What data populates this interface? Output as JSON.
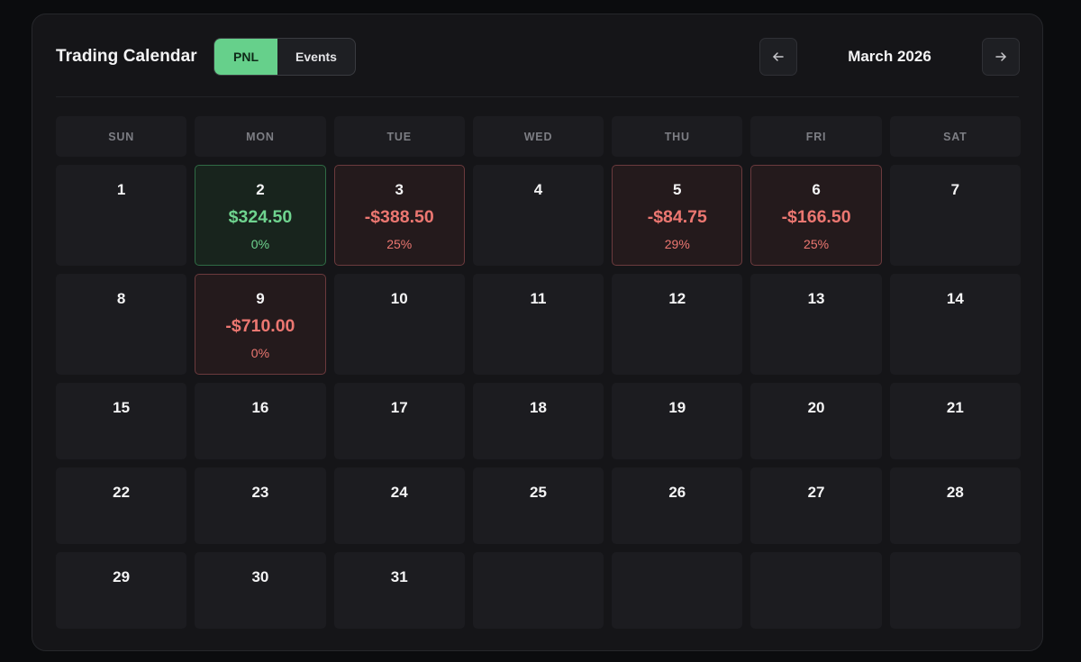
{
  "header": {
    "title": "Trading Calendar",
    "toggle": {
      "pnl_label": "PNL",
      "events_label": "Events",
      "selected": "PNL"
    },
    "month_label": "March 2026",
    "prev_icon": "arrow-left-icon",
    "next_icon": "arrow-right-icon"
  },
  "weekdays": [
    "SUN",
    "MON",
    "TUE",
    "WED",
    "THU",
    "FRI",
    "SAT"
  ],
  "colors": {
    "profit": "#6fd48f",
    "loss": "#ec7771",
    "toggle_active": "#66d08b"
  },
  "days": [
    {
      "day": "1"
    },
    {
      "day": "2",
      "pnl": "$324.50",
      "pct": "0%",
      "status": "profit"
    },
    {
      "day": "3",
      "pnl": "-$388.50",
      "pct": "25%",
      "status": "loss"
    },
    {
      "day": "4"
    },
    {
      "day": "5",
      "pnl": "-$84.75",
      "pct": "29%",
      "status": "loss"
    },
    {
      "day": "6",
      "pnl": "-$166.50",
      "pct": "25%",
      "status": "loss"
    },
    {
      "day": "7"
    },
    {
      "day": "8"
    },
    {
      "day": "9",
      "pnl": "-$710.00",
      "pct": "0%",
      "status": "loss"
    },
    {
      "day": "10"
    },
    {
      "day": "11"
    },
    {
      "day": "12"
    },
    {
      "day": "13"
    },
    {
      "day": "14"
    },
    {
      "day": "15"
    },
    {
      "day": "16"
    },
    {
      "day": "17"
    },
    {
      "day": "18"
    },
    {
      "day": "19"
    },
    {
      "day": "20"
    },
    {
      "day": "21"
    },
    {
      "day": "22"
    },
    {
      "day": "23"
    },
    {
      "day": "24"
    },
    {
      "day": "25"
    },
    {
      "day": "26"
    },
    {
      "day": "27"
    },
    {
      "day": "28"
    },
    {
      "day": "29"
    },
    {
      "day": "30"
    },
    {
      "day": "31"
    },
    {
      "day": ""
    },
    {
      "day": ""
    },
    {
      "day": ""
    },
    {
      "day": ""
    }
  ]
}
